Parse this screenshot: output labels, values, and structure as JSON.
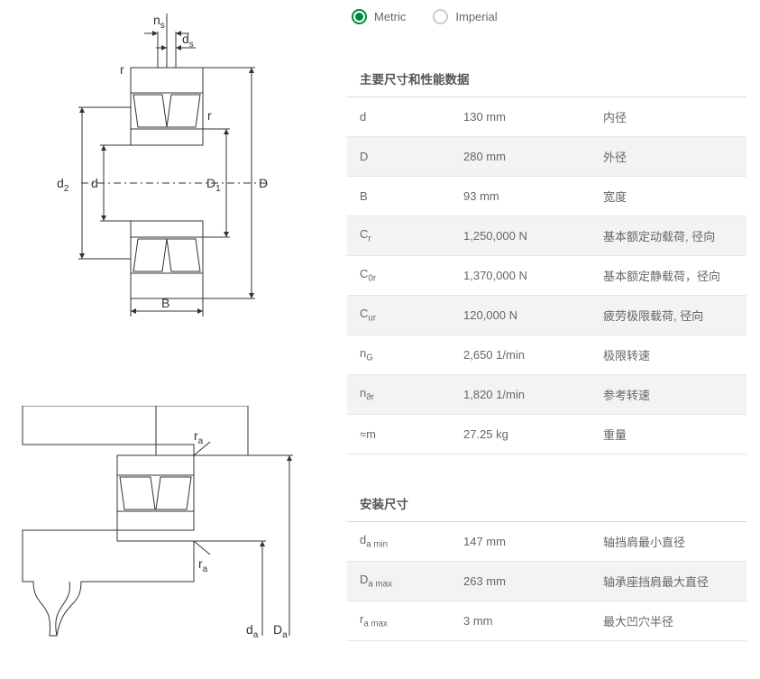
{
  "units": {
    "metric_label": "Metric",
    "imperial_label": "Imperial",
    "selected": "metric"
  },
  "diagram1_labels": {
    "ns": "n",
    "ns_sub": "s",
    "ds": "d",
    "ds_sub": "s",
    "r1": "r",
    "r2": "r",
    "d2": "d",
    "d2_sub": "2",
    "d": "d",
    "D1": "D",
    "D1_sub": "1",
    "D": "D",
    "B": "B"
  },
  "diagram2_labels": {
    "ra1": "r",
    "ra1_sub": "a",
    "ra2": "r",
    "ra2_sub": "a",
    "da": "d",
    "da_sub": "a",
    "Da": "D",
    "Da_sub": "a"
  },
  "section1": {
    "title": "主要尺寸和性能数据",
    "rows": [
      {
        "sym": "d",
        "sub": "",
        "val": "130 mm",
        "desc": "内径"
      },
      {
        "sym": "D",
        "sub": "",
        "val": "280 mm",
        "desc": "外径"
      },
      {
        "sym": "B",
        "sub": "",
        "val": "93 mm",
        "desc": "宽度"
      },
      {
        "sym": "C",
        "sub": "r",
        "val": "1,250,000 N",
        "desc": "基本额定动载荷, 径向"
      },
      {
        "sym": "C",
        "sub": "0r",
        "val": "1,370,000 N",
        "desc": "基本额定静载荷，径向"
      },
      {
        "sym": "C",
        "sub": "ur",
        "val": "120,000 N",
        "desc": "疲劳极限载荷, 径向"
      },
      {
        "sym": "n",
        "sub": "G",
        "val": "2,650 1/min",
        "desc": "极限转速"
      },
      {
        "sym": "n",
        "sub": "ϑr",
        "val": "1,820 1/min",
        "desc": "参考转速"
      },
      {
        "sym": "≈m",
        "sub": "",
        "val": "27.25 kg",
        "desc": "重量"
      }
    ]
  },
  "section2": {
    "title": "安装尺寸",
    "rows": [
      {
        "sym": "d",
        "sub": "a min",
        "val": "147 mm",
        "desc": "轴挡肩最小直径"
      },
      {
        "sym": "D",
        "sub": "a max",
        "val": "263 mm",
        "desc": "轴承座挡肩最大直径"
      },
      {
        "sym": "r",
        "sub": "a max",
        "val": "3 mm",
        "desc": "最大凹穴半径"
      }
    ]
  },
  "colors": {
    "accent": "#00893d",
    "row_alt": "#f3f3f3",
    "border": "#e6e6e6",
    "text": "#555"
  }
}
